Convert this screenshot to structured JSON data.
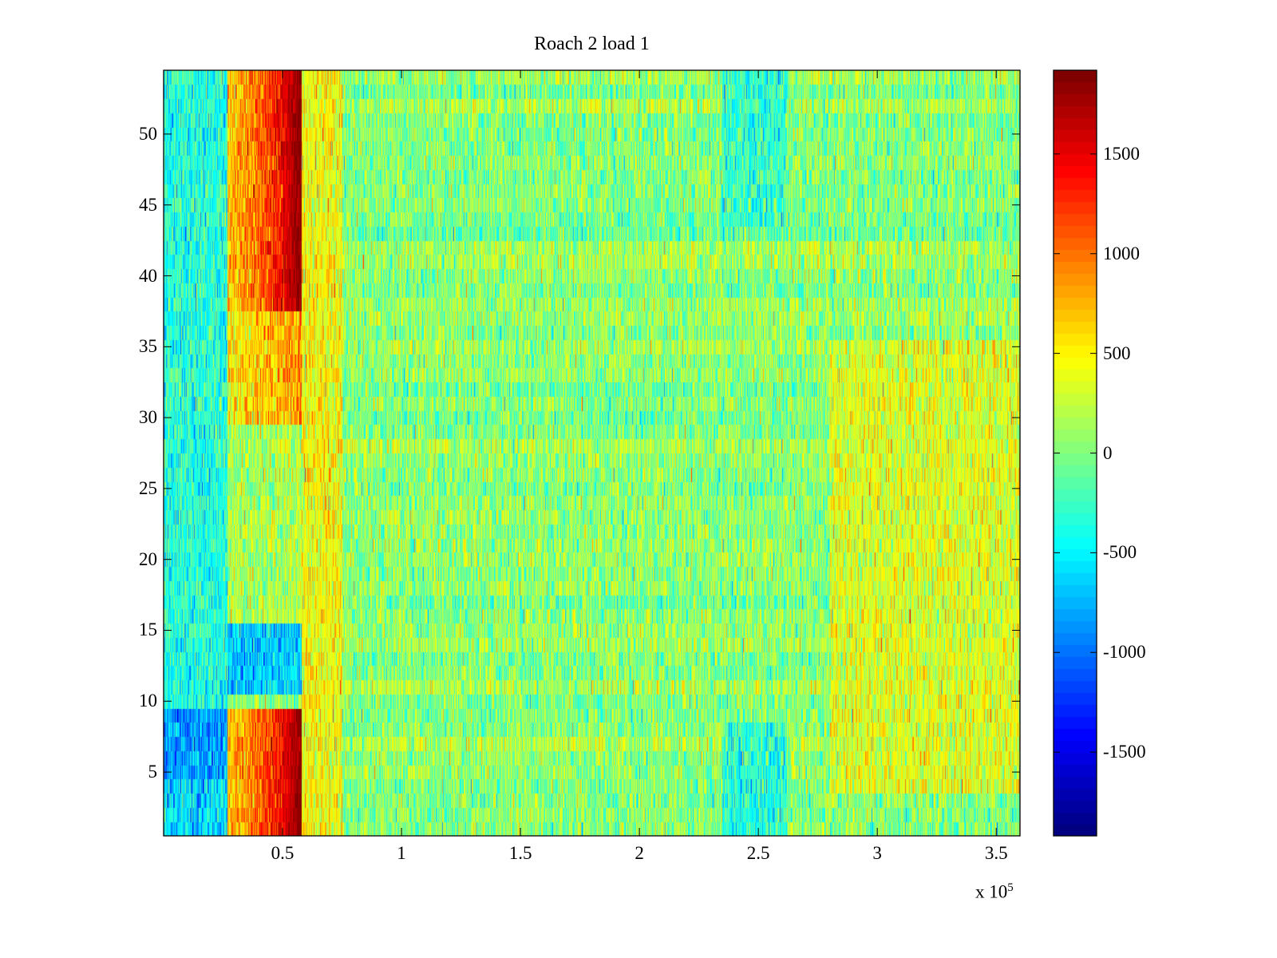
{
  "chart_data": {
    "type": "heatmap",
    "title": "Roach 2 load 1",
    "xlabel": "",
    "ylabel": "",
    "x_multiplier_label": "x 10",
    "x_multiplier_exponent": "5",
    "xlim": [
      0,
      360000
    ],
    "ylim": [
      0.5,
      54.5
    ],
    "rows": 54,
    "clim": [
      -1920,
      1920
    ],
    "colormap": "jet",
    "x_ticks": [
      50000,
      100000,
      150000,
      200000,
      250000,
      300000,
      350000
    ],
    "x_tick_labels": [
      "0.5",
      "1",
      "1.5",
      "2",
      "2.5",
      "3",
      "3.5"
    ],
    "y_ticks": [
      5,
      10,
      15,
      20,
      25,
      30,
      35,
      40,
      45,
      50
    ],
    "y_tick_labels": [
      "5",
      "10",
      "15",
      "20",
      "25",
      "30",
      "35",
      "40",
      "45",
      "50"
    ],
    "colorbar_ticks": [
      -1500,
      -1000,
      -500,
      0,
      500,
      1000,
      1500
    ],
    "colorbar_tick_labels": [
      "-1500",
      "-1000",
      "-500",
      "0",
      "500",
      "1000",
      "1500"
    ],
    "background_mean": 50,
    "noise_sd": 260,
    "regions": [
      {
        "rows": [
          1,
          9
        ],
        "x": [
          0,
          27000
        ],
        "mean": -600
      },
      {
        "rows": [
          5,
          9
        ],
        "x": [
          0,
          27000
        ],
        "mean": -850
      },
      {
        "rows": [
          10,
          54
        ],
        "x": [
          0,
          27000
        ],
        "mean": -350
      },
      {
        "rows": [
          1,
          9
        ],
        "x": [
          27000,
          58000
        ],
        "mean_start": 700,
        "mean_end": 1900
      },
      {
        "rows": [
          10,
          10
        ],
        "x": [
          27000,
          58000
        ],
        "mean": 0
      },
      {
        "rows": [
          11,
          15
        ],
        "x": [
          27000,
          58000
        ],
        "mean": -650
      },
      {
        "rows": [
          16,
          29
        ],
        "x": [
          27000,
          58000
        ],
        "mean": 150
      },
      {
        "rows": [
          30,
          37
        ],
        "x": [
          27000,
          58000
        ],
        "mean_start": 500,
        "mean_end": 900
      },
      {
        "rows": [
          38,
          54
        ],
        "x": [
          27000,
          58000
        ],
        "mean_start": 700,
        "mean_end": 1900
      },
      {
        "rows": [
          1,
          54
        ],
        "x": [
          58000,
          75000
        ],
        "mean": 450
      },
      {
        "rows": [
          1,
          8
        ],
        "x": [
          235000,
          262000
        ],
        "mean": -350
      },
      {
        "rows": [
          44,
          54
        ],
        "x": [
          235000,
          262000
        ],
        "mean": -300
      },
      {
        "rows": [
          4,
          35
        ],
        "x": [
          280000,
          360000
        ],
        "mean": 350
      }
    ]
  }
}
